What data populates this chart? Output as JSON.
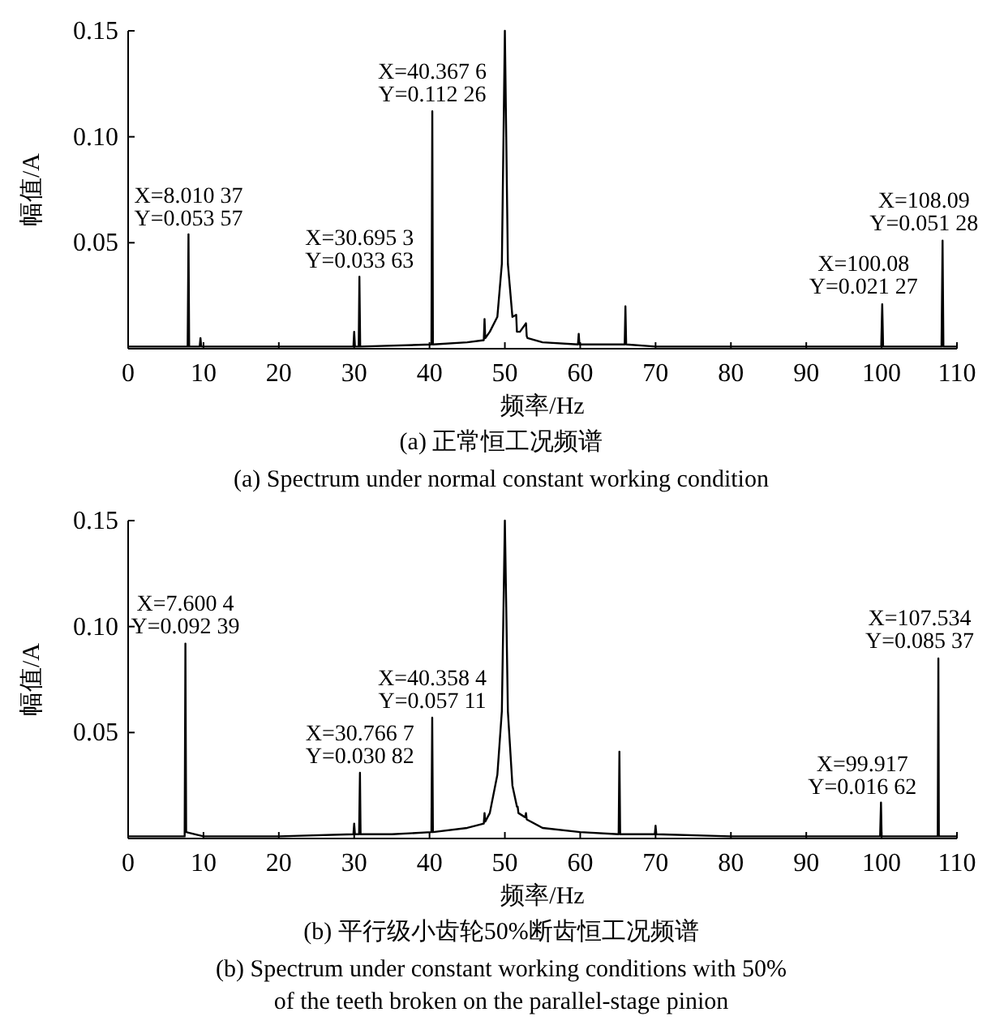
{
  "chart_data": [
    {
      "type": "line",
      "title": "(a) 正常恒工况频谱",
      "subtitle": "(a) Spectrum under normal constant working condition",
      "xlabel": "频率/Hz",
      "ylabel": "幅值/A",
      "xlim": [
        0,
        110
      ],
      "xticks": [
        0,
        10,
        20,
        30,
        40,
        50,
        60,
        70,
        80,
        90,
        100,
        110
      ],
      "ylim": [
        0,
        0.15
      ],
      "yticks": [
        {
          "value": 0.05,
          "label": "0.05"
        },
        {
          "value": 0.1,
          "label": "0.10"
        },
        {
          "value": 0.15,
          "label": "0.15"
        }
      ],
      "series": [
        {
          "color": "#000000",
          "x": [
            0,
            5,
            7.9,
            8.01,
            8.1,
            9.5,
            9.6,
            9.7,
            18,
            20,
            29.9,
            30,
            30.1,
            30.6,
            30.695,
            30.8,
            40.25,
            40.3676,
            40.45,
            45,
            47.2,
            47.3,
            47.4,
            48,
            49,
            49.6,
            50,
            50.4,
            51,
            51.5,
            51.6,
            52,
            52.8,
            52.9,
            53,
            55,
            59.7,
            59.8,
            59.9,
            65.9,
            66,
            66.1,
            70,
            80,
            90,
            99.95,
            100.08,
            100.2,
            105,
            107.95,
            108.09,
            108.2,
            110
          ],
          "values": [
            0.001,
            0.001,
            0.001,
            0.054,
            0.001,
            0.001,
            0.005,
            0.001,
            0.001,
            0.001,
            0.001,
            0.008,
            0.001,
            0.001,
            0.034,
            0.001,
            0.002,
            0.112,
            0.002,
            0.003,
            0.004,
            0.014,
            0.005,
            0.008,
            0.015,
            0.04,
            0.15,
            0.04,
            0.015,
            0.016,
            0.008,
            0.008,
            0.012,
            0.006,
            0.005,
            0.003,
            0.002,
            0.007,
            0.002,
            0.002,
            0.02,
            0.002,
            0.001,
            0.001,
            0.001,
            0.001,
            0.021,
            0.001,
            0.001,
            0.001,
            0.051,
            0.001,
            0.001
          ]
        }
      ],
      "annotations": [
        {
          "text": "X=8.010 37\nY=0.053 57",
          "x": 8.01037,
          "y": 0.05357
        },
        {
          "text": "X=30.695 3\nY=0.033 63",
          "x": 30.6953,
          "y": 0.03363
        },
        {
          "text": "X=40.367 6\nY=0.112 26",
          "x": 40.3676,
          "y": 0.11226
        },
        {
          "text": "X=100.08\nY=0.021 27",
          "x": 100.08,
          "y": 0.02127
        },
        {
          "text": "X=108.09\nY=0.051 28",
          "x": 108.09,
          "y": 0.05128
        }
      ]
    },
    {
      "type": "line",
      "title": "(b) 平行级小齿轮50%断齿恒工况频谱",
      "subtitle": "(b) Spectrum under constant working conditions with 50%\nof the teeth broken on the parallel-stage pinion",
      "xlabel": "频率/Hz",
      "ylabel": "幅值/A",
      "xlim": [
        0,
        110
      ],
      "xticks": [
        0,
        10,
        20,
        30,
        40,
        50,
        60,
        70,
        80,
        90,
        100,
        110
      ],
      "ylim": [
        0,
        0.15
      ],
      "yticks": [
        {
          "value": 0.05,
          "label": "0.05"
        },
        {
          "value": 0.1,
          "label": "0.10"
        },
        {
          "value": 0.15,
          "label": "0.15"
        }
      ],
      "series": [
        {
          "color": "#000000",
          "x": [
            0,
            5,
            7.5,
            7.6004,
            7.7,
            10,
            20,
            29.9,
            30,
            30.1,
            30.65,
            30.7667,
            30.85,
            35,
            40.25,
            40.3584,
            40.45,
            45,
            47.2,
            47.3,
            47.4,
            48,
            49,
            49.6,
            50,
            50.4,
            51,
            51.6,
            51.7,
            51.8,
            52.7,
            52.8,
            52.9,
            55,
            60,
            65.1,
            65.2,
            65.3,
            69.9,
            70,
            70.1,
            80,
            90,
            99.8,
            99.917,
            100,
            105,
            107.45,
            107.534,
            107.6,
            110
          ],
          "values": [
            0.001,
            0.001,
            0.001,
            0.092,
            0.003,
            0.001,
            0.001,
            0.002,
            0.007,
            0.002,
            0.002,
            0.031,
            0.002,
            0.002,
            0.003,
            0.057,
            0.003,
            0.005,
            0.007,
            0.012,
            0.008,
            0.012,
            0.03,
            0.06,
            0.15,
            0.06,
            0.025,
            0.015,
            0.015,
            0.012,
            0.01,
            0.012,
            0.009,
            0.005,
            0.003,
            0.002,
            0.041,
            0.002,
            0.002,
            0.006,
            0.002,
            0.001,
            0.001,
            0.001,
            0.017,
            0.001,
            0.001,
            0.001,
            0.085,
            0.001,
            0.001
          ]
        }
      ],
      "annotations": [
        {
          "text": "X=7.600 4\nY=0.092 39",
          "x": 7.6004,
          "y": 0.09239
        },
        {
          "text": "X=30.766 7\nY=0.030 82",
          "x": 30.7667,
          "y": 0.03082
        },
        {
          "text": "X=40.358 4\nY=0.057 11",
          "x": 40.3584,
          "y": 0.05711
        },
        {
          "text": "X=99.917\nY=0.016 62",
          "x": 99.917,
          "y": 0.01662
        },
        {
          "text": "X=107.534\nY=0.085 37",
          "x": 107.534,
          "y": 0.08537
        }
      ]
    }
  ]
}
